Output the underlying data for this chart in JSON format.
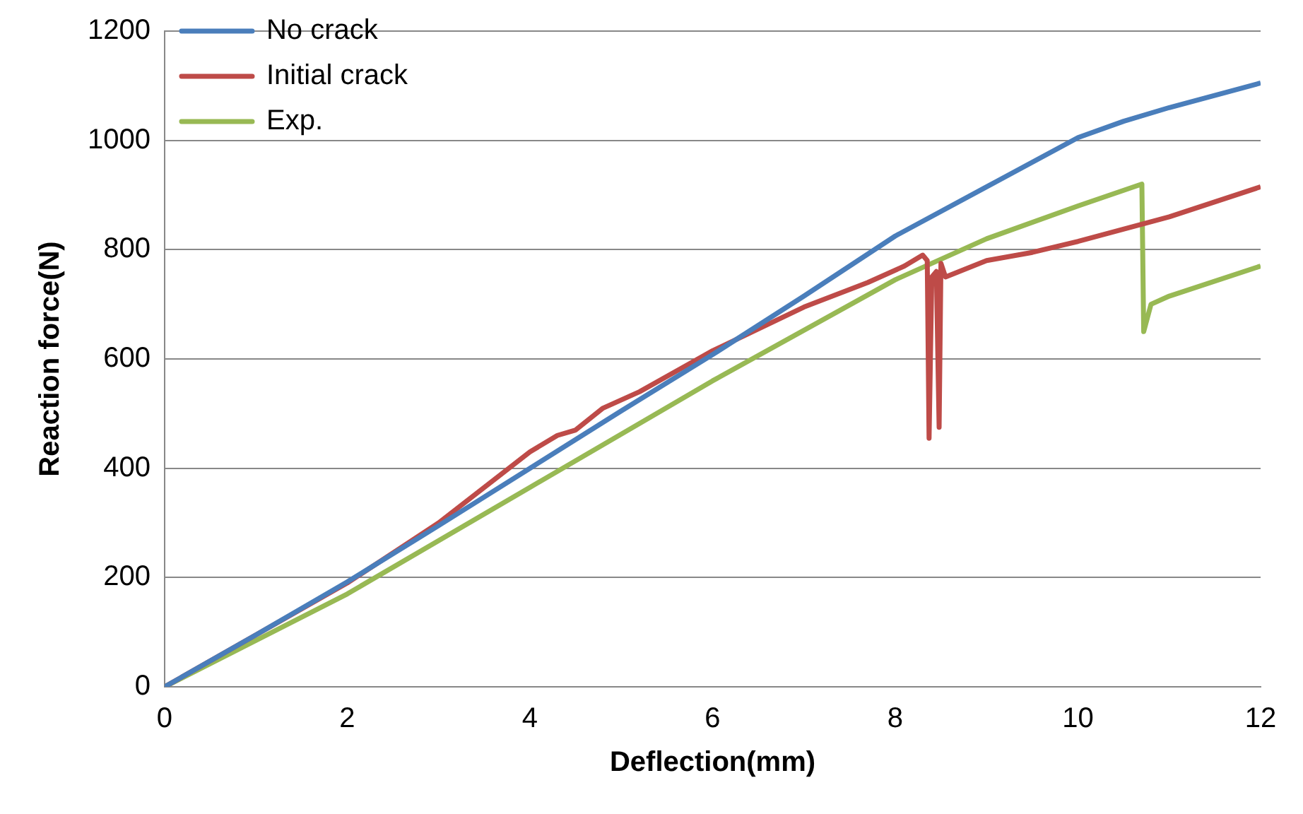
{
  "chart_data": {
    "type": "line",
    "xlabel": "Deflection(mm)",
    "ylabel": "Reaction force(N)",
    "xlim": [
      0,
      12
    ],
    "xticks": [
      0,
      2,
      4,
      6,
      8,
      10,
      12
    ],
    "ylim": [
      0,
      1200
    ],
    "yticks": [
      0,
      200,
      400,
      600,
      800,
      1000,
      1200
    ],
    "grid": "y",
    "legend": "top left",
    "marker": "none",
    "line_style": "solid",
    "series": [
      {
        "name": "No crack",
        "color": "#4a7ebb",
        "x": [
          0,
          1,
          2,
          3,
          4,
          5,
          6,
          7,
          8,
          9,
          10,
          10.5,
          11,
          12
        ],
        "values": [
          0,
          95,
          192,
          295,
          400,
          505,
          608,
          715,
          825,
          915,
          1005,
          1035,
          1060,
          1105
        ]
      },
      {
        "name": "Initial crack",
        "color": "#be4b48",
        "x": [
          0,
          1,
          2,
          3,
          4,
          4.3,
          4.5,
          4.8,
          5.2,
          6,
          7,
          7.7,
          8.1,
          8.3,
          8.35,
          8.37,
          8.4,
          8.45,
          8.48,
          8.5,
          8.55,
          9,
          9.5,
          10,
          11,
          12
        ],
        "values": [
          0,
          95,
          190,
          300,
          430,
          460,
          470,
          510,
          540,
          615,
          695,
          740,
          770,
          790,
          780,
          455,
          750,
          760,
          475,
          775,
          750,
          780,
          795,
          815,
          860,
          915
        ]
      },
      {
        "name": "Exp.",
        "color": "#98b954",
        "x": [
          0,
          2,
          4,
          6,
          8,
          9,
          10,
          10.7,
          10.72,
          10.8,
          11,
          12
        ],
        "values": [
          0,
          170,
          365,
          560,
          745,
          820,
          880,
          920,
          650,
          700,
          715,
          770
        ]
      }
    ]
  }
}
